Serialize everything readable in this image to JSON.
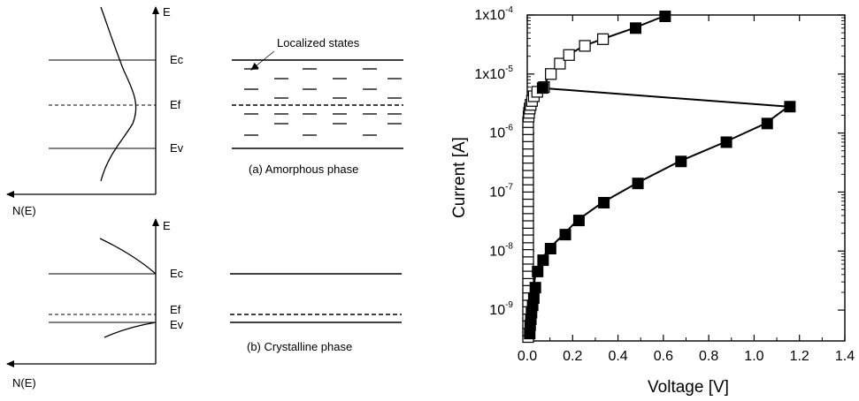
{
  "band_diagram": {
    "energy_axis_label": "E",
    "dos_axis_label": "N(E)",
    "level_labels": {
      "ec": "Ec",
      "ef": "Ef",
      "ev": "Ev"
    },
    "localized_states_label": "Localized states",
    "amorphous_caption": "(a) Amorphous phase",
    "crystalline_caption": "(b) Crystalline phase"
  },
  "chart_data": {
    "type": "scatter",
    "xlabel": "Voltage [V]",
    "ylabel": "Current [A]",
    "xlim": [
      0,
      1.4
    ],
    "ylim": [
      3e-10,
      0.0001
    ],
    "yscale": "log",
    "x_ticks": [
      "0.0",
      "0.2",
      "0.4",
      "0.6",
      "0.8",
      "1.0",
      "1.2",
      "1.4"
    ],
    "y_ticks": [
      {
        "value": 1e-09,
        "mantissa": "10",
        "exponent": "-9"
      },
      {
        "value": 1e-08,
        "mantissa": "10",
        "exponent": "-8"
      },
      {
        "value": 1e-07,
        "mantissa": "10",
        "exponent": "-7"
      },
      {
        "value": 1e-06,
        "mantissa": "10",
        "exponent": "-6"
      },
      {
        "value": 1e-05,
        "mantissa": "1x10",
        "exponent": "-5"
      },
      {
        "value": 0.0001,
        "mantissa": "1x10",
        "exponent": "-4"
      }
    ],
    "series": [
      {
        "marker": "filled-square",
        "color": "#000000",
        "x": [
          0.003,
          0.005,
          0.008,
          0.011,
          0.016,
          0.021,
          0.028,
          0.038,
          0.062,
          0.095,
          0.16,
          0.22,
          0.33,
          0.48,
          0.67,
          0.87,
          1.05,
          1.15,
          0.06,
          0.47,
          0.6
        ],
        "y": [
          4e-10,
          5.5e-10,
          7e-10,
          9e-10,
          1.2e-09,
          1.6e-09,
          2.4e-09,
          4.5e-09,
          7e-09,
          1.1e-08,
          1.9e-08,
          3.3e-08,
          6.6e-08,
          1.4e-07,
          3.3e-07,
          7e-07,
          1.45e-06,
          2.8e-06,
          5.8e-06,
          6e-05,
          9.5e-05
        ]
      },
      {
        "marker": "open-square",
        "color": "#000000",
        "x": [
          0.0,
          0.0,
          0.0,
          0.0,
          0.0,
          0.0,
          0.0,
          0.0,
          0.0,
          0.0,
          0.0,
          0.0,
          0.0,
          0.0,
          0.0,
          0.0,
          0.0,
          0.0,
          0.0,
          0.0,
          0.0,
          0.0,
          0.0,
          0.0,
          0.0,
          0.0,
          0.0,
          0.0,
          0.0,
          0.0,
          0.0,
          0.002,
          0.004,
          0.007,
          0.011,
          0.017,
          0.025,
          0.04,
          0.07,
          0.1,
          0.14,
          0.18,
          0.25,
          0.33
        ],
        "y": [
          3.5e-10,
          4.5e-10,
          6e-10,
          8e-10,
          1.05e-09,
          1.4e-09,
          1.8e-09,
          2.4e-09,
          3.2e-09,
          4.2e-09,
          5.6e-09,
          7.4e-09,
          9.8e-09,
          1.3e-08,
          1.7e-08,
          2.3e-08,
          3e-08,
          4e-08,
          5.3e-08,
          7e-08,
          9.3e-08,
          1.23e-07,
          1.63e-07,
          2.16e-07,
          2.85e-07,
          3.8e-07,
          5e-07,
          6.6e-07,
          8.8e-07,
          1.16e-06,
          1.53e-06,
          1.9e-06,
          2.2e-06,
          2.6e-06,
          3e-06,
          3.5e-06,
          4.2e-06,
          5e-06,
          6e-06,
          1e-05,
          1.5e-05,
          2.1e-05,
          3e-05,
          3.9e-05
        ]
      }
    ],
    "connector": {
      "x": [
        0.06,
        1.15
      ],
      "y": [
        5.8e-06,
        2.8e-06
      ]
    }
  }
}
